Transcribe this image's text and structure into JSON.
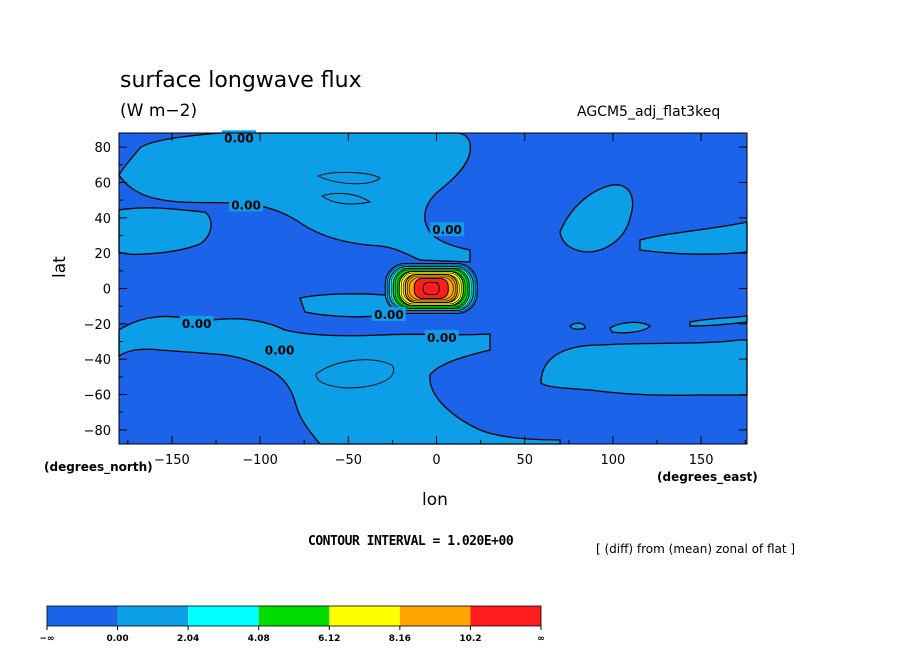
{
  "chart_data": {
    "type": "heatmap",
    "title": "surface longwave flux",
    "units": "(W m−2)",
    "run_id": "AGCM5_adj_flat3keq",
    "operation": "[ (diff) from (mean) zonal of flat ]",
    "contour_interval_text": "CONTOUR INTERVAL = 1.020E+00",
    "xlabel": "lon",
    "ylabel": "lat",
    "x_units": "(degrees_east)",
    "y_units": "(degrees_north)",
    "xlim": [
      -180,
      176
    ],
    "ylim": [
      -88,
      88
    ],
    "x_ticks": [
      -150,
      -100,
      -50,
      0,
      50,
      100,
      150
    ],
    "y_ticks": [
      80,
      60,
      40,
      20,
      0,
      -20,
      -40,
      -60,
      -80
    ],
    "contour_labels": [
      {
        "text": "0.00",
        "lon": -112,
        "lat": 85
      },
      {
        "text": "0.00",
        "lon": -108,
        "lat": 47
      },
      {
        "text": "0.00",
        "lon": 6,
        "lat": 33
      },
      {
        "text": "0.00",
        "lon": -27,
        "lat": -15
      },
      {
        "text": "0.00",
        "lon": -136,
        "lat": -20
      },
      {
        "text": "0.00",
        "lon": -89,
        "lat": -35
      },
      {
        "text": "0.00",
        "lon": 3,
        "lat": -28
      }
    ],
    "color_levels": {
      "edges": [
        "−∞",
        "0.00",
        "2.04",
        "4.08",
        "6.12",
        "8.16",
        "10.2",
        "∞"
      ],
      "colors": [
        "#1b63e8",
        "#0c9ee6",
        "#00ffff",
        "#00dd00",
        "#ffff00",
        "#ffa500",
        "#ff1d1d"
      ]
    },
    "grid": false
  }
}
